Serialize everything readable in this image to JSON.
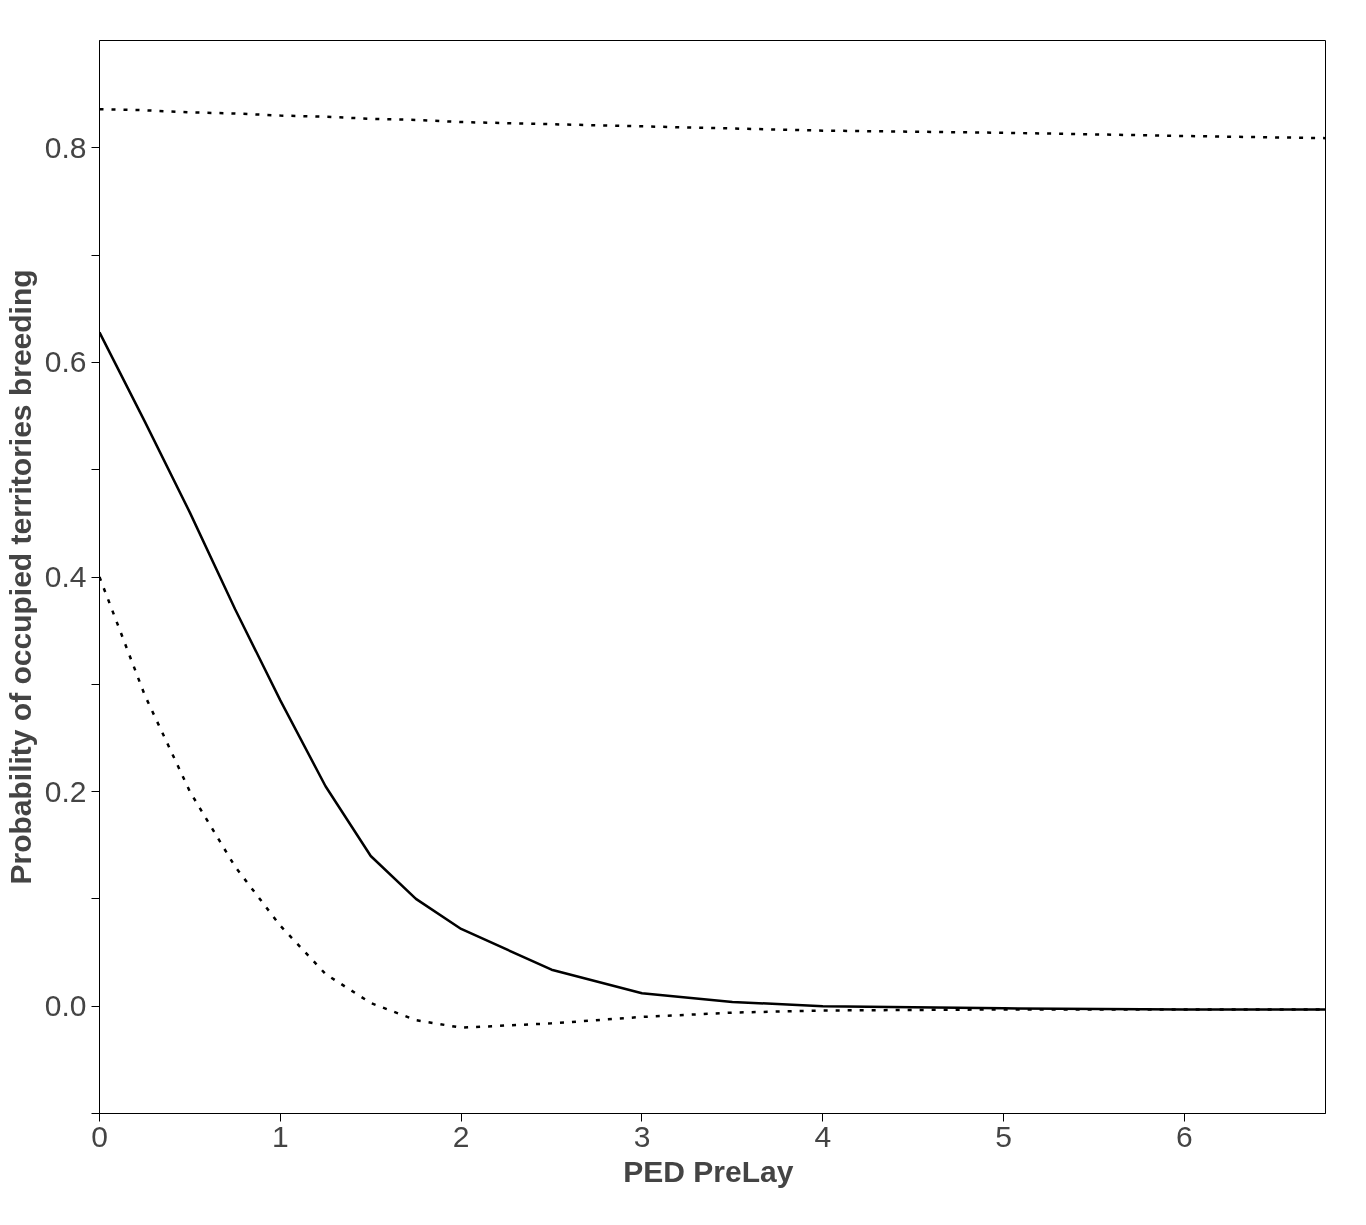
{
  "chart_data": {
    "type": "line",
    "xlabel": "PED  PreLay",
    "ylabel": "Probability of occupied territories breeding",
    "x": [
      0,
      0.25,
      0.5,
      0.75,
      1,
      1.25,
      1.5,
      1.75,
      2,
      2.5,
      3,
      3.5,
      4,
      5,
      6,
      6.78
    ],
    "series": [
      {
        "color": "#000000",
        "line_style": "solid",
        "values": [
          0.628,
          0.545,
          0.46,
          0.37,
          0.285,
          0.205,
          0.14,
          0.1,
          0.072,
          0.034,
          0.012,
          0.004,
          0.0,
          -0.002,
          -0.003,
          -0.003
        ]
      },
      {
        "color": "#000000",
        "line_style": "dotted",
        "values": [
          0.4,
          0.29,
          0.2,
          0.13,
          0.075,
          0.03,
          0.003,
          -0.013,
          -0.02,
          -0.016,
          -0.01,
          -0.006,
          -0.004,
          -0.003,
          -0.003,
          -0.003
        ]
      },
      {
        "color": "#000000",
        "line_style": "dotted",
        "values": [
          0.836,
          0.835,
          0.833,
          0.832,
          0.83,
          0.829,
          0.827,
          0.826,
          0.824,
          0.822,
          0.82,
          0.818,
          0.816,
          0.814,
          0.811,
          0.809
        ]
      }
    ],
    "xlim": [
      0,
      6.78
    ],
    "ylim": [
      -0.1,
      0.9
    ],
    "xticks": [
      0,
      1,
      2,
      3,
      4,
      5,
      6
    ],
    "yticks": [
      {
        "value": -0.1,
        "label": null
      },
      "0.0",
      {
        "value": 0.1,
        "label": null
      },
      0.2,
      {
        "value": 0.3,
        "label": null
      },
      0.4,
      {
        "value": 0.5,
        "label": null
      },
      0.6,
      {
        "value": 0.7,
        "label": null
      },
      0.8
    ],
    "grid": false,
    "marker": "none"
  }
}
